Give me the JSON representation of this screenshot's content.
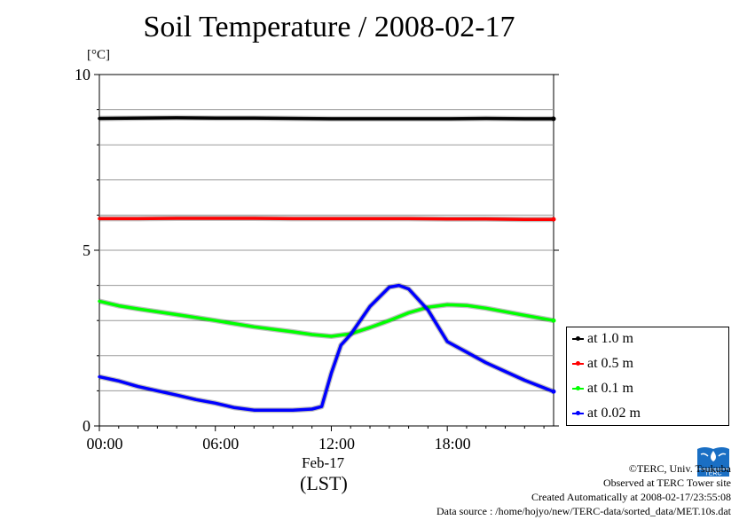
{
  "chart_data": {
    "type": "line",
    "title": "Soil Temperature / 2008-02-17",
    "ylabel": "[°C]",
    "xlabel": "(LST)",
    "x_date_label": "Feb-17",
    "xlim": [
      0,
      23.5
    ],
    "ylim": [
      0,
      10
    ],
    "x_ticks": [
      0,
      6,
      12,
      18
    ],
    "x_tick_labels": [
      "00:00",
      "06:00",
      "12:00",
      "18:00"
    ],
    "y_ticks": [
      0,
      5,
      10
    ],
    "y_tick_labels": [
      "0",
      "5",
      "10"
    ],
    "y_minor_grid": [
      1,
      2,
      3,
      4,
      6,
      7,
      8,
      9
    ],
    "grid": true,
    "legend_position": "right-bottom",
    "x_units": "hours LST",
    "series": [
      {
        "name": "at 1.0 m",
        "color": "#000000",
        "x": [
          0,
          2,
          4,
          6,
          8,
          10,
          12,
          14,
          16,
          18,
          20,
          22,
          23.5
        ],
        "y": [
          8.75,
          8.76,
          8.77,
          8.76,
          8.76,
          8.75,
          8.74,
          8.74,
          8.74,
          8.74,
          8.75,
          8.74,
          8.74
        ]
      },
      {
        "name": "at 0.5 m",
        "color": "#ff0000",
        "x": [
          0,
          2,
          4,
          6,
          8,
          10,
          12,
          14,
          16,
          18,
          20,
          22,
          23.5
        ],
        "y": [
          5.9,
          5.9,
          5.91,
          5.91,
          5.91,
          5.9,
          5.9,
          5.9,
          5.9,
          5.89,
          5.89,
          5.88,
          5.88
        ]
      },
      {
        "name": "at 0.1 m",
        "color": "#00ff00",
        "x": [
          0,
          1,
          2,
          4,
          6,
          8,
          10,
          11,
          12,
          13,
          14,
          15,
          16,
          17,
          18,
          19,
          20,
          21,
          22,
          23.5
        ],
        "y": [
          3.55,
          3.42,
          3.33,
          3.17,
          3.0,
          2.82,
          2.68,
          2.6,
          2.55,
          2.62,
          2.8,
          3.0,
          3.22,
          3.38,
          3.45,
          3.43,
          3.35,
          3.25,
          3.15,
          3.0
        ]
      },
      {
        "name": "at 0.02 m",
        "color": "#0000ff",
        "x": [
          0,
          1,
          2,
          3,
          4,
          5,
          6,
          7,
          8,
          9,
          10,
          11,
          11.5,
          12,
          12.5,
          13,
          14,
          15,
          15.5,
          16,
          17,
          18,
          19,
          20,
          21,
          22,
          23.5
        ],
        "y": [
          1.4,
          1.28,
          1.12,
          1.0,
          0.88,
          0.75,
          0.65,
          0.52,
          0.45,
          0.45,
          0.45,
          0.48,
          0.55,
          1.5,
          2.3,
          2.6,
          3.4,
          3.95,
          4.0,
          3.9,
          3.3,
          2.4,
          2.1,
          1.8,
          1.55,
          1.3,
          0.98
        ]
      }
    ]
  },
  "footer": {
    "copyright": "©TERC, Univ. Tsukuba",
    "observed": "Observed at TERC Tower site",
    "created": "Created Automatically at 2008-02-17/23:55:08",
    "source": "Data source : /home/hojyo/new/TERC-data/sorted_data/MET.10s.dat",
    "logo_text": "TERC"
  }
}
